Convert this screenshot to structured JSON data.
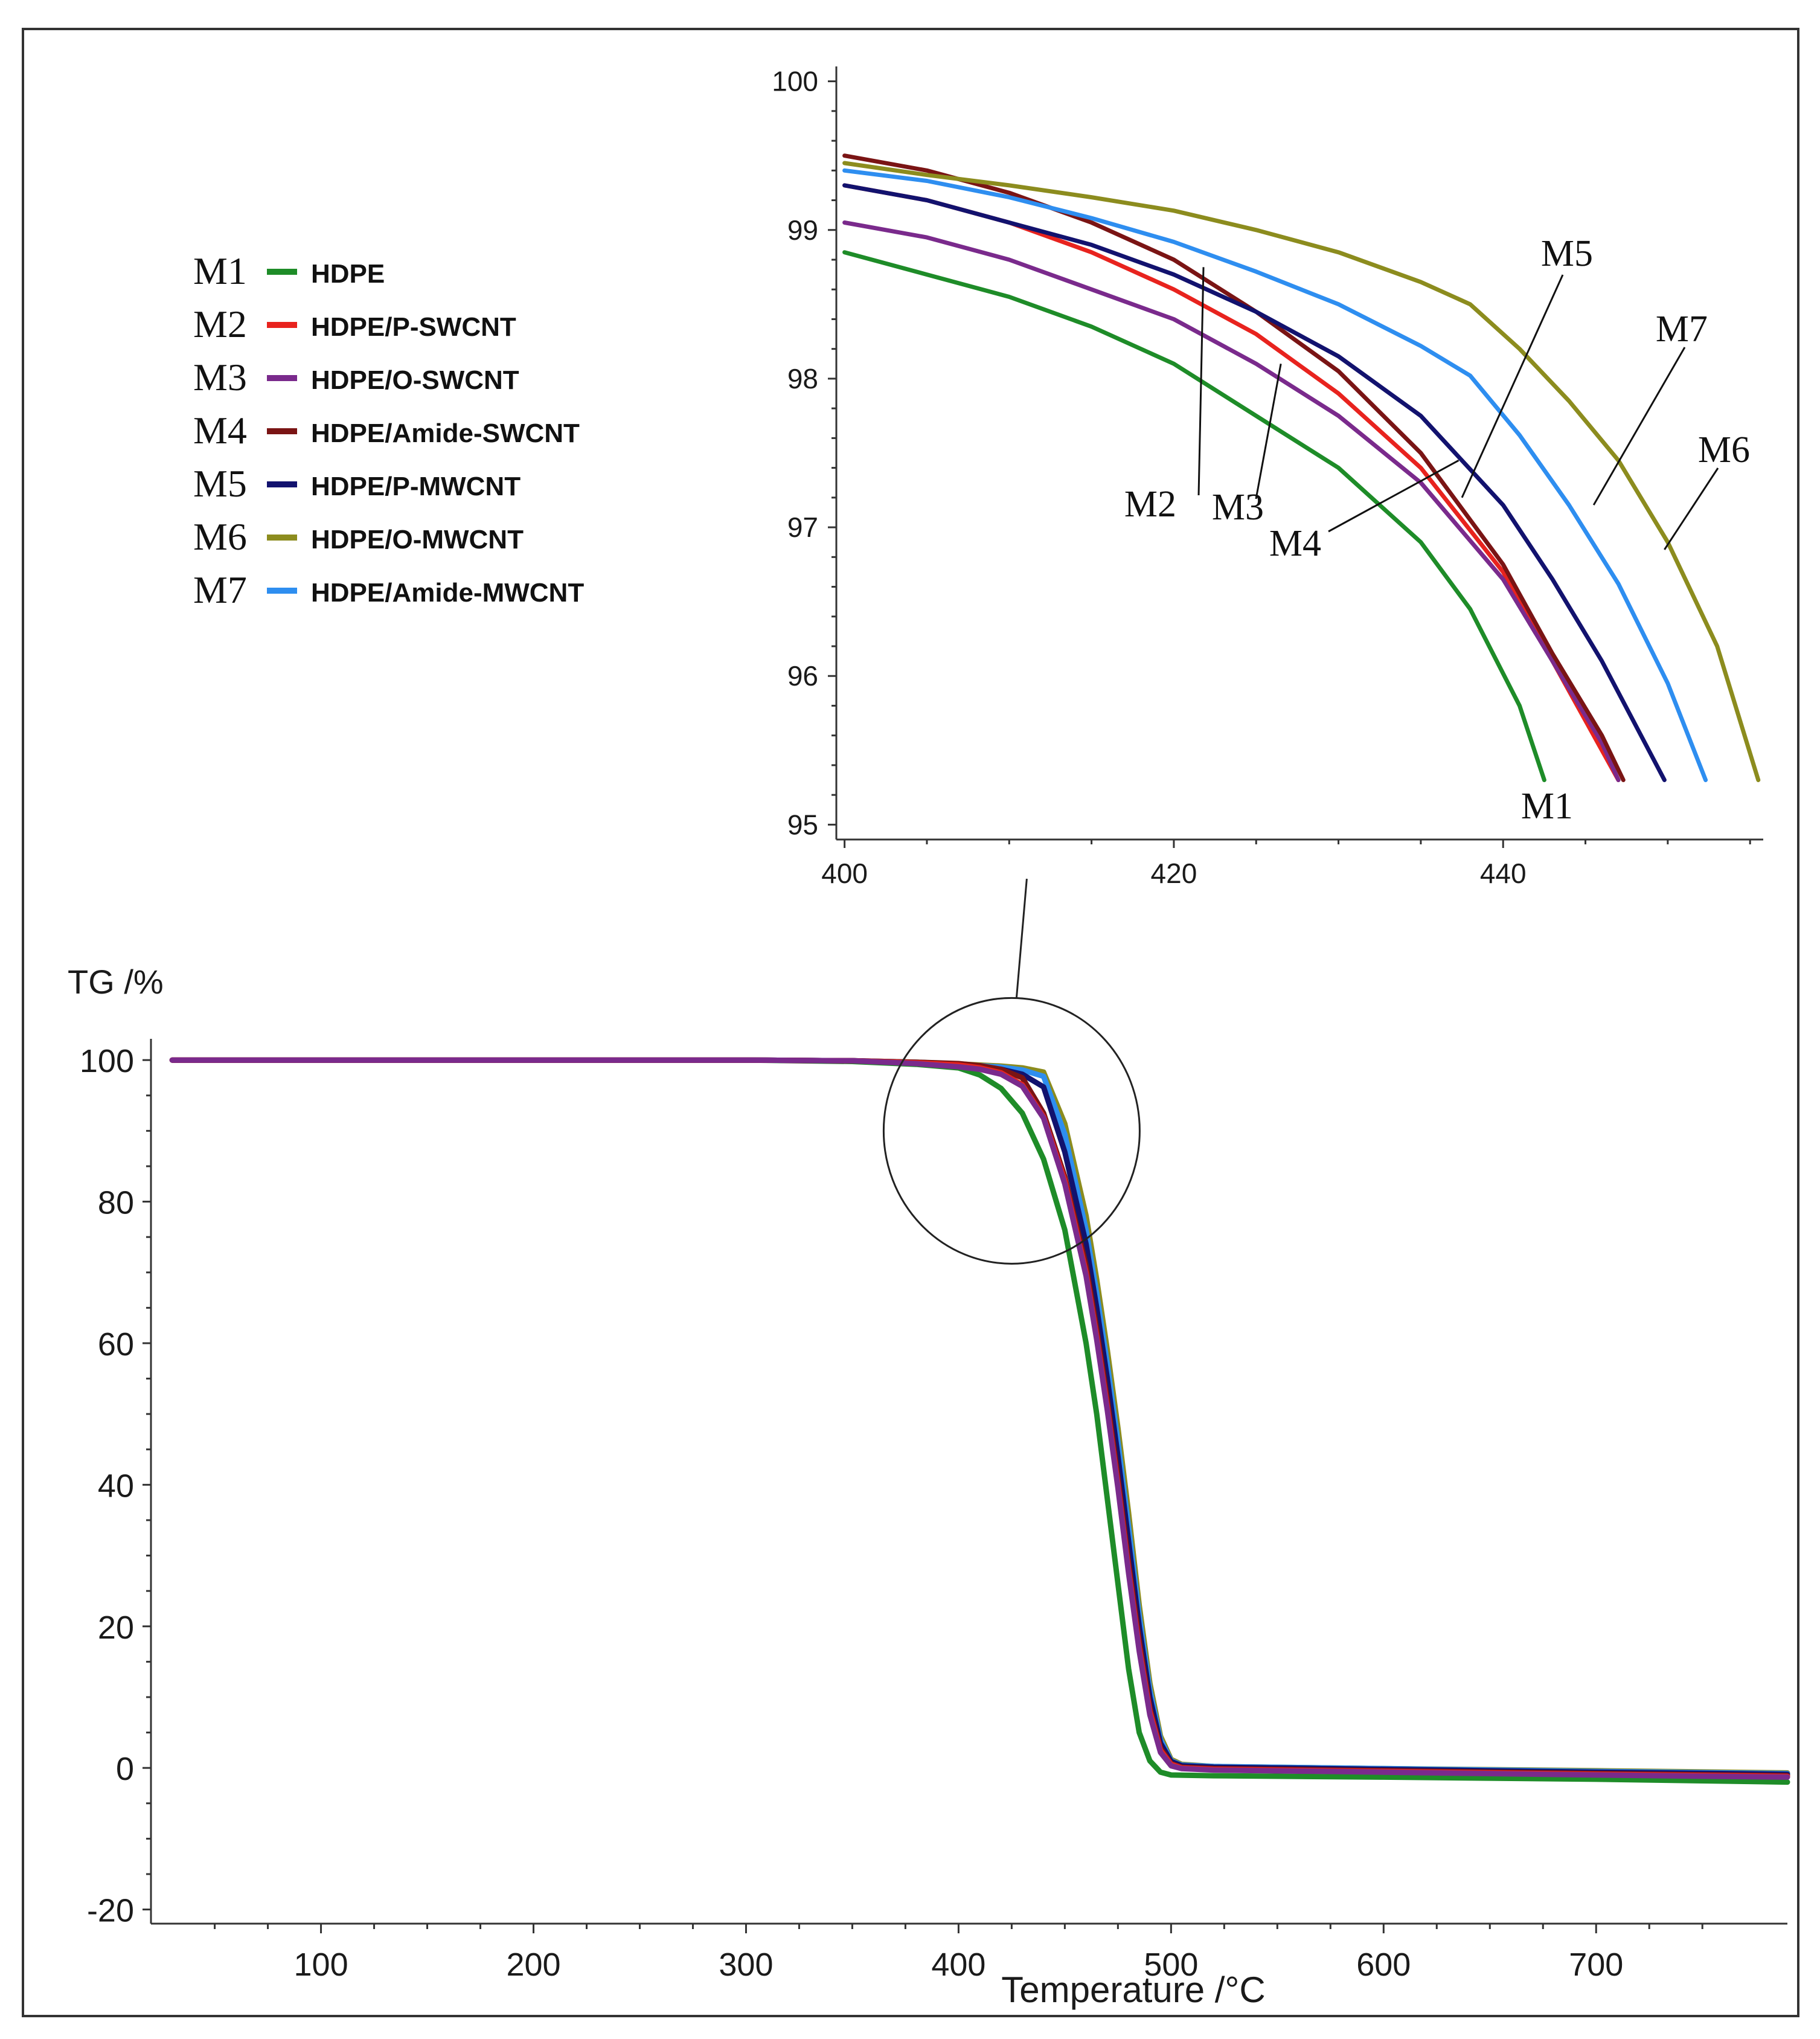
{
  "chart_data": [
    {
      "id": "main",
      "type": "line",
      "title": "",
      "ylabel": "TG /%",
      "xlabel": "Temperature /°C",
      "xlim": [
        20,
        790
      ],
      "ylim": [
        -22,
        103
      ],
      "x_ticks": [
        100,
        200,
        300,
        400,
        500,
        600,
        700
      ],
      "y_ticks": [
        100,
        80,
        60,
        40,
        20,
        0,
        -20
      ],
      "x_tick_labels": [
        "100",
        "200",
        "300",
        "400",
        "500",
        "600",
        "700"
      ],
      "y_tick_labels": [
        "100",
        "80",
        "60",
        "40",
        "20",
        "0",
        "-20"
      ],
      "series": [
        {
          "name": "M1",
          "label": "HDPE",
          "color": "#1e8c28",
          "x": [
            30,
            100,
            200,
            300,
            350,
            380,
            400,
            410,
            420,
            430,
            440,
            450,
            460,
            465,
            470,
            475,
            480,
            485,
            490,
            495,
            500,
            520,
            600,
            700,
            790
          ],
          "y": [
            100,
            100,
            100,
            100,
            99.8,
            99.4,
            98.9,
            97.9,
            96.0,
            92.5,
            86.0,
            76.0,
            60.0,
            50.0,
            38.0,
            26.0,
            14.0,
            5.0,
            1.0,
            -0.6,
            -1.0,
            -1.1,
            -1.3,
            -1.6,
            -2.0
          ]
        },
        {
          "name": "M2",
          "label": "HDPE/P-SWCNT",
          "color": "#e8231e",
          "x": [
            30,
            100,
            200,
            300,
            350,
            380,
            400,
            410,
            420,
            430,
            440,
            450,
            460,
            465,
            470,
            475,
            480,
            485,
            490,
            495,
            500,
            505,
            520,
            600,
            700,
            790
          ],
          "y": [
            100,
            100,
            100,
            100,
            99.9,
            99.6,
            99.3,
            98.9,
            98.2,
            96.5,
            92.0,
            83.0,
            70.0,
            61.0,
            51.0,
            40.0,
            28.0,
            17.0,
            8.0,
            2.5,
            0.5,
            0.0,
            -0.2,
            -0.5,
            -0.9,
            -1.2
          ]
        },
        {
          "name": "M3",
          "label": "HDPE/O-SWCNT",
          "color": "#7a2a8c",
          "x": [
            30,
            100,
            200,
            300,
            350,
            380,
            400,
            410,
            420,
            430,
            440,
            450,
            460,
            465,
            470,
            475,
            480,
            485,
            490,
            495,
            500,
            505,
            520,
            600,
            700,
            790
          ],
          "y": [
            100,
            100,
            100,
            100,
            99.9,
            99.5,
            99.05,
            98.7,
            98.0,
            96.3,
            91.8,
            82.5,
            69.5,
            60.5,
            50.5,
            39.5,
            27.5,
            16.5,
            7.5,
            2.2,
            0.3,
            -0.1,
            -0.3,
            -0.6,
            -1.0,
            -1.3
          ]
        },
        {
          "name": "M4",
          "label": "HDPE/Amide-SWCNT",
          "color": "#7a1414",
          "x": [
            30,
            100,
            200,
            300,
            350,
            380,
            400,
            410,
            420,
            430,
            440,
            450,
            460,
            465,
            470,
            475,
            480,
            485,
            490,
            495,
            500,
            505,
            520,
            600,
            700,
            790
          ],
          "y": [
            100,
            100,
            100,
            100,
            99.9,
            99.7,
            99.5,
            99.2,
            98.7,
            97.5,
            92.5,
            83.5,
            71.0,
            62.0,
            52.0,
            41.0,
            29.0,
            18.0,
            8.5,
            2.8,
            0.6,
            0.1,
            -0.1,
            -0.4,
            -0.8,
            -1.1
          ]
        },
        {
          "name": "M5",
          "label": "HDPE/P-MWCNT",
          "color": "#12126e",
          "x": [
            30,
            100,
            200,
            300,
            350,
            380,
            400,
            410,
            420,
            430,
            440,
            450,
            460,
            465,
            470,
            475,
            480,
            485,
            490,
            495,
            500,
            505,
            520,
            600,
            700,
            790
          ],
          "y": [
            100,
            100,
            100,
            100,
            99.9,
            99.6,
            99.3,
            99.0,
            98.7,
            98.0,
            96.2,
            87.0,
            74.0,
            65.0,
            55.0,
            44.0,
            32.0,
            20.0,
            10.0,
            3.5,
            0.9,
            0.3,
            0.1,
            -0.2,
            -0.6,
            -0.9
          ]
        },
        {
          "name": "M6",
          "label": "HDPE/O-MWCNT",
          "color": "#8c8c1e",
          "x": [
            30,
            100,
            200,
            300,
            350,
            380,
            400,
            410,
            420,
            430,
            440,
            450,
            460,
            465,
            470,
            475,
            480,
            485,
            490,
            495,
            500,
            505,
            520,
            600,
            700,
            790
          ],
          "y": [
            100,
            100,
            100,
            100,
            99.9,
            99.7,
            99.45,
            99.3,
            99.15,
            98.9,
            98.3,
            91.0,
            78.0,
            69.0,
            59.0,
            48.0,
            36.0,
            23.0,
            12.0,
            4.5,
            1.2,
            0.5,
            0.2,
            -0.1,
            -0.4,
            -0.7
          ]
        },
        {
          "name": "M7",
          "label": "HDPE/Amide-MWCNT",
          "color": "#2e8ef0",
          "x": [
            30,
            100,
            200,
            300,
            350,
            380,
            400,
            410,
            420,
            430,
            440,
            450,
            460,
            465,
            470,
            475,
            480,
            485,
            490,
            495,
            500,
            505,
            520,
            600,
            700,
            790
          ],
          "y": [
            100,
            100,
            100,
            100,
            99.9,
            99.7,
            99.4,
            99.2,
            99.0,
            98.6,
            97.7,
            89.5,
            76.0,
            67.0,
            57.0,
            46.0,
            34.0,
            21.5,
            11.0,
            4.0,
            1.0,
            0.4,
            0.2,
            -0.1,
            -0.5,
            -0.8
          ]
        }
      ],
      "zoom_circle": {
        "center_x": 425,
        "center_y": 90,
        "label_link": "inset"
      }
    },
    {
      "id": "inset",
      "type": "line",
      "title": "",
      "xlabel": "",
      "ylabel": "",
      "xlim": [
        399.5,
        455.8
      ],
      "ylim": [
        94.9,
        100.1
      ],
      "x_ticks": [
        400,
        420,
        440
      ],
      "y_ticks": [
        100,
        99,
        98,
        97,
        96,
        95
      ],
      "x_tick_labels": [
        "400",
        "420",
        "440"
      ],
      "y_tick_labels": [
        "100",
        "99",
        "98",
        "97",
        "96",
        "95"
      ],
      "series": [
        {
          "name": "M1",
          "color": "#1e8c28",
          "x": [
            400,
            405,
            410,
            415,
            420,
            425,
            430,
            435,
            438,
            441,
            442.5
          ],
          "y": [
            98.85,
            98.7,
            98.55,
            98.35,
            98.1,
            97.75,
            97.4,
            96.9,
            96.45,
            95.8,
            95.3
          ]
        },
        {
          "name": "M2",
          "color": "#e8231e",
          "x": [
            400,
            405,
            410,
            415,
            420,
            425,
            430,
            435,
            440,
            443,
            446,
            447
          ],
          "y": [
            99.3,
            99.2,
            99.05,
            98.85,
            98.6,
            98.3,
            97.9,
            97.4,
            96.7,
            96.1,
            95.5,
            95.3
          ]
        },
        {
          "name": "M3",
          "color": "#7a2a8c",
          "x": [
            400,
            405,
            410,
            415,
            420,
            425,
            430,
            435,
            440,
            443,
            446,
            447
          ],
          "y": [
            99.05,
            98.95,
            98.8,
            98.6,
            98.4,
            98.1,
            97.75,
            97.3,
            96.65,
            96.1,
            95.55,
            95.3
          ]
        },
        {
          "name": "M4",
          "color": "#7a1414",
          "x": [
            400,
            405,
            410,
            415,
            420,
            425,
            430,
            435,
            440,
            443,
            446,
            447.3
          ],
          "y": [
            99.5,
            99.4,
            99.25,
            99.05,
            98.8,
            98.45,
            98.05,
            97.5,
            96.75,
            96.15,
            95.6,
            95.3
          ]
        },
        {
          "name": "M5",
          "color": "#12126e",
          "x": [
            400,
            405,
            410,
            415,
            420,
            425,
            430,
            435,
            440,
            443,
            446,
            449.8
          ],
          "y": [
            99.3,
            99.2,
            99.05,
            98.9,
            98.7,
            98.45,
            98.15,
            97.75,
            97.15,
            96.65,
            96.1,
            95.3
          ]
        },
        {
          "name": "M6",
          "color": "#8c8c1e",
          "x": [
            400,
            405,
            410,
            415,
            420,
            425,
            430,
            435,
            438,
            441,
            444,
            447,
            450,
            453,
            455.5
          ],
          "y": [
            99.45,
            99.37,
            99.3,
            99.22,
            99.13,
            99.0,
            98.85,
            98.65,
            98.5,
            98.2,
            97.85,
            97.45,
            96.9,
            96.2,
            95.3
          ]
        },
        {
          "name": "M7",
          "color": "#2e8ef0",
          "x": [
            400,
            405,
            410,
            415,
            420,
            425,
            430,
            435,
            438,
            441,
            444,
            447,
            450,
            452.3
          ],
          "y": [
            99.4,
            99.33,
            99.22,
            99.08,
            98.92,
            98.72,
            98.5,
            98.22,
            98.02,
            97.62,
            97.15,
            96.62,
            95.95,
            95.3
          ]
        }
      ],
      "annotations": [
        {
          "text": "M5",
          "target": [
            437.5,
            97.2
          ]
        },
        {
          "text": "M7",
          "target": [
            445.5,
            97.15
          ]
        },
        {
          "text": "M6",
          "target": [
            449.8,
            96.85
          ]
        },
        {
          "text": "M2",
          "target": [
            421.8,
            98.75
          ]
        },
        {
          "text": "M3",
          "target": [
            426.5,
            98.1
          ]
        },
        {
          "text": "M4",
          "target": [
            437.3,
            97.45
          ]
        },
        {
          "text": "M1",
          "target": null
        }
      ]
    }
  ],
  "legend": {
    "placement": "top-left",
    "items": [
      {
        "key": "M1",
        "label": "HDPE",
        "color": "#1e8c28"
      },
      {
        "key": "M2",
        "label": "HDPE/P-SWCNT",
        "color": "#e8231e"
      },
      {
        "key": "M3",
        "label": "HDPE/O-SWCNT",
        "color": "#7a2a8c"
      },
      {
        "key": "M4",
        "label": "HDPE/Amide-SWCNT",
        "color": "#7a1414"
      },
      {
        "key": "M5",
        "label": "HDPE/P-MWCNT",
        "color": "#12126e"
      },
      {
        "key": "M6",
        "label": "HDPE/O-MWCNT",
        "color": "#8c8c1e"
      },
      {
        "key": "M7",
        "label": "HDPE/Amide-MWCNT",
        "color": "#2e8ef0"
      }
    ]
  }
}
